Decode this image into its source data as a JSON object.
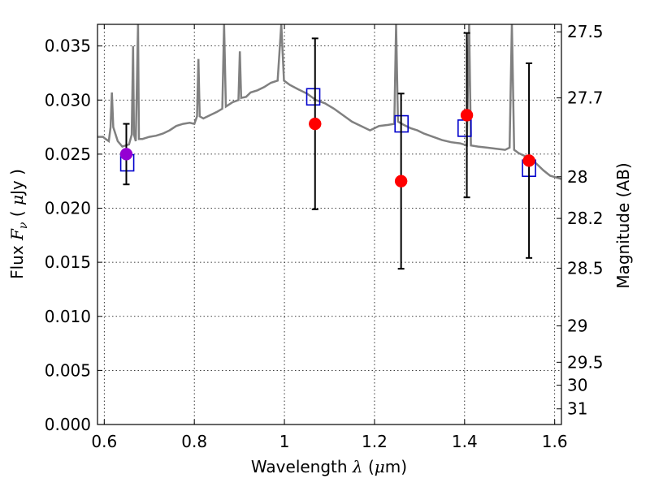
{
  "chart_data": {
    "type": "scatter",
    "xlabel": "Wavelength  λ (μm)",
    "ylabel": "Flux  Fν ( μJy )",
    "ylabel_right": "Magnitude (AB)",
    "xlim": [
      0.585,
      1.615
    ],
    "ylim": [
      0.0,
      0.037
    ],
    "grid": true,
    "x_ticks": [
      {
        "value": 0.6,
        "label": "0.6"
      },
      {
        "value": 0.8,
        "label": "0.8"
      },
      {
        "value": 1.0,
        "label": "1"
      },
      {
        "value": 1.2,
        "label": "1.2"
      },
      {
        "value": 1.4,
        "label": "1.4"
      },
      {
        "value": 1.6,
        "label": "1.6"
      }
    ],
    "y_ticks": [
      {
        "value": 0.0,
        "label": "0.000"
      },
      {
        "value": 0.005,
        "label": "0.005"
      },
      {
        "value": 0.01,
        "label": "0.010"
      },
      {
        "value": 0.015,
        "label": "0.015"
      },
      {
        "value": 0.02,
        "label": "0.020"
      },
      {
        "value": 0.025,
        "label": "0.025"
      },
      {
        "value": 0.03,
        "label": "0.030"
      },
      {
        "value": 0.035,
        "label": "0.035"
      }
    ],
    "mag_ticks": [
      {
        "value": 27.5,
        "label": "27.5"
      },
      {
        "value": 27.7,
        "label": "27.7"
      },
      {
        "value": 28.0,
        "label": "28"
      },
      {
        "value": 28.2,
        "label": "28.2"
      },
      {
        "value": 28.5,
        "label": "28.5"
      },
      {
        "value": 29.0,
        "label": "29"
      },
      {
        "value": 29.5,
        "label": "29.5"
      },
      {
        "value": 30.0,
        "label": "30"
      },
      {
        "value": 31.0,
        "label": "31"
      }
    ],
    "observed": [
      {
        "x": 0.649,
        "y": 0.025,
        "err": 0.0028,
        "color": "#9400d3"
      },
      {
        "x": 1.068,
        "y": 0.0278,
        "err": 0.0079,
        "color": "#ff0000"
      },
      {
        "x": 1.259,
        "y": 0.0225,
        "err": 0.0081,
        "color": "#ff0000"
      },
      {
        "x": 1.405,
        "y": 0.0286,
        "err": 0.0076,
        "color": "#ff0000"
      },
      {
        "x": 1.543,
        "y": 0.0244,
        "err": 0.009,
        "color": "#ff0000"
      }
    ],
    "model_points": [
      {
        "x": 0.651,
        "y": 0.0242
      },
      {
        "x": 1.064,
        "y": 0.0303
      },
      {
        "x": 1.26,
        "y": 0.0278
      },
      {
        "x": 1.4,
        "y": 0.0274
      },
      {
        "x": 1.543,
        "y": 0.0237
      }
    ],
    "template_spectrum": [
      [
        0.585,
        0.0266
      ],
      [
        0.597,
        0.0266
      ],
      [
        0.603,
        0.0264
      ],
      [
        0.61,
        0.0262
      ],
      [
        0.614,
        0.0275
      ],
      [
        0.617,
        0.0307
      ],
      [
        0.62,
        0.0275
      ],
      [
        0.63,
        0.0262
      ],
      [
        0.64,
        0.0257
      ],
      [
        0.655,
        0.0259
      ],
      [
        0.661,
        0.0268
      ],
      [
        0.664,
        0.035
      ],
      [
        0.666,
        0.0268
      ],
      [
        0.67,
        0.0262
      ],
      [
        0.675,
        0.037
      ],
      [
        0.677,
        0.0264
      ],
      [
        0.685,
        0.0264
      ],
      [
        0.7,
        0.0266
      ],
      [
        0.715,
        0.0267
      ],
      [
        0.73,
        0.0269
      ],
      [
        0.745,
        0.0272
      ],
      [
        0.76,
        0.0276
      ],
      [
        0.775,
        0.0278
      ],
      [
        0.79,
        0.0279
      ],
      [
        0.8,
        0.0278
      ],
      [
        0.806,
        0.0285
      ],
      [
        0.809,
        0.0338
      ],
      [
        0.812,
        0.0285
      ],
      [
        0.82,
        0.0283
      ],
      [
        0.835,
        0.0286
      ],
      [
        0.85,
        0.0289
      ],
      [
        0.862,
        0.0292
      ],
      [
        0.866,
        0.037
      ],
      [
        0.87,
        0.0294
      ],
      [
        0.885,
        0.0298
      ],
      [
        0.898,
        0.03
      ],
      [
        0.901,
        0.0345
      ],
      [
        0.904,
        0.0302
      ],
      [
        0.915,
        0.0303
      ],
      [
        0.925,
        0.0307
      ],
      [
        0.94,
        0.0309
      ],
      [
        0.955,
        0.0312
      ],
      [
        0.97,
        0.0316
      ],
      [
        0.985,
        0.0318
      ],
      [
        0.993,
        0.037
      ],
      [
        0.999,
        0.0318
      ],
      [
        1.012,
        0.0314
      ],
      [
        1.03,
        0.031
      ],
      [
        1.05,
        0.0306
      ],
      [
        1.07,
        0.03
      ],
      [
        1.09,
        0.0297
      ],
      [
        1.11,
        0.0292
      ],
      [
        1.13,
        0.0286
      ],
      [
        1.15,
        0.028
      ],
      [
        1.17,
        0.0276
      ],
      [
        1.19,
        0.0272
      ],
      [
        1.21,
        0.0276
      ],
      [
        1.23,
        0.0277
      ],
      [
        1.244,
        0.0278
      ],
      [
        1.248,
        0.037
      ],
      [
        1.252,
        0.028
      ],
      [
        1.265,
        0.0277
      ],
      [
        1.28,
        0.0274
      ],
      [
        1.295,
        0.0272
      ],
      [
        1.31,
        0.0269
      ],
      [
        1.33,
        0.0266
      ],
      [
        1.35,
        0.0263
      ],
      [
        1.37,
        0.0261
      ],
      [
        1.39,
        0.026
      ],
      [
        1.405,
        0.0258
      ],
      [
        1.41,
        0.037
      ],
      [
        1.414,
        0.0258
      ],
      [
        1.43,
        0.0257
      ],
      [
        1.45,
        0.0256
      ],
      [
        1.47,
        0.0255
      ],
      [
        1.49,
        0.0254
      ],
      [
        1.5,
        0.0256
      ],
      [
        1.505,
        0.037
      ],
      [
        1.51,
        0.0254
      ],
      [
        1.52,
        0.0251
      ],
      [
        1.53,
        0.0249
      ],
      [
        1.545,
        0.0246
      ],
      [
        1.56,
        0.0241
      ],
      [
        1.575,
        0.0235
      ],
      [
        1.59,
        0.023
      ],
      [
        1.615,
        0.0227
      ]
    ],
    "colors": {
      "spectrum": "#808080",
      "model_box": "#0000cc",
      "error_bar": "#000000",
      "grid": "#000000"
    }
  }
}
